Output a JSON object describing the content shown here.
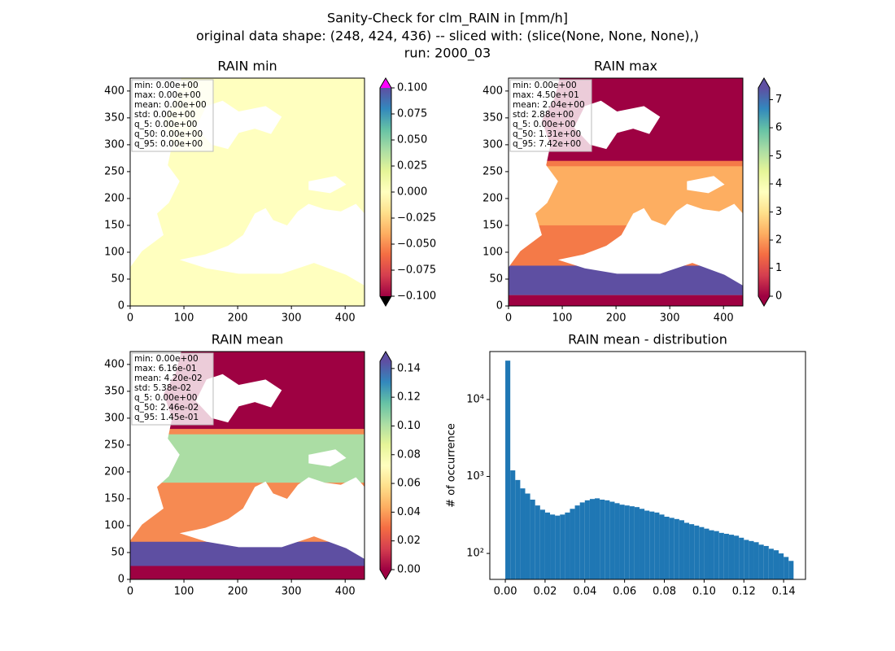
{
  "figure": {
    "title_lines": [
      "Sanity-Check for clm_RAIN in [mm/h]",
      "original data shape: (248, 424, 436) -- sliced with: (slice(None, None, None),)",
      "run: 2000_03"
    ]
  },
  "chart_data": [
    {
      "type": "image",
      "title": "RAIN min",
      "xlim": [
        0,
        436
      ],
      "ylim": [
        0,
        424
      ],
      "xticks": [
        0,
        100,
        200,
        300,
        400
      ],
      "yticks": [
        0,
        50,
        100,
        150,
        200,
        250,
        300,
        350,
        400
      ],
      "stats": [
        "min: 0.00e+00",
        "max: 0.00e+00",
        "mean: 0.00e+00",
        "std: 0.00e+00",
        "q_5: 0.00e+00",
        "q_50: 0.00e+00",
        "q_95: 0.00e+00"
      ],
      "colorbar": {
        "lim": [
          -0.1,
          0.1
        ],
        "extend": "both",
        "under_color": "#000000",
        "over_color": "#ff00ff",
        "colors": [
          "#9e0142",
          "#d53e4f",
          "#f46d43",
          "#fdae61",
          "#fee08b",
          "#ffffbf",
          "#e6f598",
          "#abdda4",
          "#66c2a5",
          "#3288bd",
          "#5e4fa2"
        ],
        "ticks": [
          {
            "value": -0.1,
            "label": "−0.100"
          },
          {
            "value": -0.075,
            "label": "−0.075"
          },
          {
            "value": -0.05,
            "label": "−0.050"
          },
          {
            "value": -0.025,
            "label": "−0.025"
          },
          {
            "value": 0,
            "label": "0.000"
          },
          {
            "value": 0.025,
            "label": "0.025"
          },
          {
            "value": 0.05,
            "label": "0.050"
          },
          {
            "value": 0.075,
            "label": "0.075"
          },
          {
            "value": 0.1,
            "label": "0.100"
          }
        ]
      }
    },
    {
      "type": "image",
      "title": "RAIN max",
      "xlim": [
        0,
        436
      ],
      "ylim": [
        0,
        424
      ],
      "xticks": [
        0,
        100,
        200,
        300,
        400
      ],
      "yticks": [
        0,
        50,
        100,
        150,
        200,
        250,
        300,
        350,
        400
      ],
      "stats": [
        "min: 0.00e+00",
        "max: 4.50e+01",
        "mean: 2.04e+00",
        "std: 2.88e+00",
        "q_5: 0.00e+00",
        "q_50: 1.31e+00",
        "q_95: 7.42e+00"
      ],
      "colorbar": {
        "lim": [
          0,
          7.42
        ],
        "extend": "both",
        "under_color": "#9e0142",
        "over_color": "#5e4fa2",
        "colors": [
          "#9e0142",
          "#d53e4f",
          "#f46d43",
          "#fdae61",
          "#fee08b",
          "#ffffbf",
          "#e6f598",
          "#abdda4",
          "#66c2a5",
          "#3288bd",
          "#5e4fa2"
        ],
        "ticks": [
          0,
          1,
          2,
          3,
          4,
          5,
          6,
          7
        ]
      }
    },
    {
      "type": "image",
      "title": "RAIN mean",
      "xlim": [
        0,
        436
      ],
      "ylim": [
        0,
        424
      ],
      "xticks": [
        0,
        100,
        200,
        300,
        400
      ],
      "yticks": [
        0,
        50,
        100,
        150,
        200,
        250,
        300,
        350,
        400
      ],
      "stats": [
        "min: 0.00e+00",
        "max: 6.16e-01",
        "mean: 4.20e-02",
        "std: 5.38e-02",
        "q_5: 0.00e+00",
        "q_50: 2.46e-02",
        "q_95: 1.45e-01"
      ],
      "colorbar": {
        "lim": [
          0,
          0.145
        ],
        "extend": "both",
        "under_color": "#9e0142",
        "over_color": "#5e4fa2",
        "colors": [
          "#9e0142",
          "#d53e4f",
          "#f46d43",
          "#fdae61",
          "#fee08b",
          "#ffffbf",
          "#e6f598",
          "#abdda4",
          "#66c2a5",
          "#3288bd",
          "#5e4fa2"
        ],
        "ticks": [
          {
            "value": 0,
            "label": "0.00"
          },
          {
            "value": 0.02,
            "label": "0.02"
          },
          {
            "value": 0.04,
            "label": "0.04"
          },
          {
            "value": 0.06,
            "label": "0.06"
          },
          {
            "value": 0.08,
            "label": "0.08"
          },
          {
            "value": 0.1,
            "label": "0.10"
          },
          {
            "value": 0.12,
            "label": "0.12"
          },
          {
            "value": 0.14,
            "label": "0.14"
          }
        ]
      }
    },
    {
      "type": "histogram",
      "title": "RAIN mean - distribution",
      "ylabel": "# of occurrence",
      "color": "#1f77b4",
      "log_y": true,
      "xlim": [
        -0.0078,
        0.151
      ],
      "ylim": [
        46,
        42000
      ],
      "xticks": [
        {
          "value": 0,
          "label": "0.00"
        },
        {
          "value": 0.02,
          "label": "0.02"
        },
        {
          "value": 0.04,
          "label": "0.04"
        },
        {
          "value": 0.06,
          "label": "0.06"
        },
        {
          "value": 0.08,
          "label": "0.08"
        },
        {
          "value": 0.1,
          "label": "0.10"
        },
        {
          "value": 0.12,
          "label": "0.12"
        },
        {
          "value": 0.14,
          "label": "0.14"
        }
      ],
      "yticks": [
        {
          "value": 100,
          "label": "10²"
        },
        {
          "value": 1000,
          "label": "10³"
        },
        {
          "value": 10000,
          "label": "10⁴"
        }
      ],
      "bins": [
        0,
        0.0025,
        0.005,
        0.0075,
        0.01,
        0.0125,
        0.015,
        0.0175,
        0.02,
        0.0225,
        0.025,
        0.0275,
        0.03,
        0.0325,
        0.035,
        0.0375,
        0.04,
        0.0425,
        0.045,
        0.0475,
        0.05,
        0.0525,
        0.055,
        0.0575,
        0.06,
        0.0625,
        0.065,
        0.0675,
        0.07,
        0.0725,
        0.075,
        0.0775,
        0.08,
        0.0825,
        0.085,
        0.0875,
        0.09,
        0.0925,
        0.095,
        0.0975,
        0.1,
        0.1025,
        0.105,
        0.1075,
        0.11,
        0.1125,
        0.115,
        0.1175,
        0.12,
        0.1225,
        0.125,
        0.1275,
        0.13,
        0.1325,
        0.135,
        0.1375,
        0.14,
        0.1425,
        0.145
      ],
      "values": [
        32000,
        1200,
        900,
        700,
        600,
        500,
        420,
        370,
        340,
        320,
        310,
        320,
        340,
        380,
        420,
        460,
        490,
        510,
        520,
        500,
        490,
        470,
        450,
        430,
        420,
        410,
        400,
        380,
        360,
        350,
        340,
        320,
        300,
        290,
        280,
        270,
        250,
        240,
        230,
        220,
        210,
        200,
        195,
        185,
        180,
        175,
        170,
        160,
        150,
        145,
        140,
        130,
        125,
        115,
        110,
        100,
        90,
        80
      ]
    }
  ]
}
